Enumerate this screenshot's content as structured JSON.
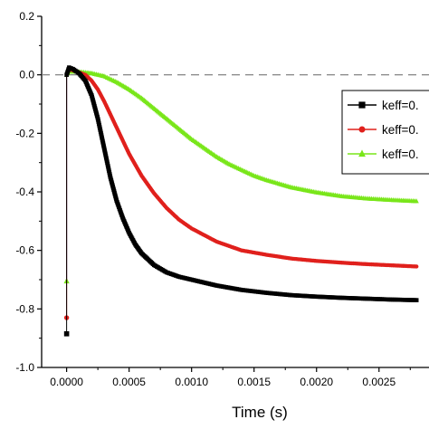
{
  "chart_data": {
    "type": "line",
    "xlabel": "Time (s)",
    "ylabel": "",
    "xlim": [
      -0.0002,
      0.0029
    ],
    "ylim": [
      -1.0,
      0.2
    ],
    "x_ticks": [
      "0.0000",
      "0.0005",
      "0.0010",
      "0.0015",
      "0.0020",
      "0.0025"
    ],
    "x_tick_values": [
      0,
      0.0005,
      0.001,
      0.0015,
      0.002,
      0.0025
    ],
    "y_ticks": [
      "0.2",
      "0.0",
      "-0.2",
      "-0.4",
      "-0.6",
      "-0.8",
      "-1.0"
    ],
    "y_tick_values": [
      0.2,
      0.0,
      -0.2,
      -0.4,
      -0.6,
      -0.8,
      -1.0
    ],
    "reference_line_y": 0.0,
    "grid": false,
    "legend_position": "right",
    "series": [
      {
        "name": "keff=0.",
        "color": "#000000",
        "marker": "square",
        "points": [
          [
            0,
            -0.885
          ],
          [
            0,
            0.0
          ],
          [
            2e-05,
            0.025
          ],
          [
            5e-05,
            0.02
          ],
          [
            0.0001,
            0.005
          ],
          [
            0.00015,
            -0.02
          ],
          [
            0.0002,
            -0.07
          ],
          [
            0.00025,
            -0.15
          ],
          [
            0.0003,
            -0.25
          ],
          [
            0.00035,
            -0.35
          ],
          [
            0.0004,
            -0.43
          ],
          [
            0.00045,
            -0.49
          ],
          [
            0.0005,
            -0.54
          ],
          [
            0.00055,
            -0.58
          ],
          [
            0.0006,
            -0.61
          ],
          [
            0.0007,
            -0.65
          ],
          [
            0.0008,
            -0.675
          ],
          [
            0.0009,
            -0.69
          ],
          [
            0.001,
            -0.7
          ],
          [
            0.0012,
            -0.72
          ],
          [
            0.0014,
            -0.735
          ],
          [
            0.0016,
            -0.745
          ],
          [
            0.0018,
            -0.753
          ],
          [
            0.002,
            -0.758
          ],
          [
            0.0022,
            -0.762
          ],
          [
            0.0024,
            -0.765
          ],
          [
            0.0026,
            -0.768
          ],
          [
            0.0028,
            -0.77
          ]
        ]
      },
      {
        "name": "keff=0.",
        "color": "#e0201c",
        "marker": "circle",
        "points": [
          [
            0,
            -0.83
          ],
          [
            0,
            0.0
          ],
          [
            2e-05,
            0.02
          ],
          [
            5e-05,
            0.015
          ],
          [
            0.0001,
            0.008
          ],
          [
            0.00015,
            0.0
          ],
          [
            0.0002,
            -0.02
          ],
          [
            0.00025,
            -0.05
          ],
          [
            0.0003,
            -0.09
          ],
          [
            0.00035,
            -0.135
          ],
          [
            0.0004,
            -0.18
          ],
          [
            0.00045,
            -0.225
          ],
          [
            0.0005,
            -0.27
          ],
          [
            0.0006,
            -0.345
          ],
          [
            0.0007,
            -0.405
          ],
          [
            0.0008,
            -0.455
          ],
          [
            0.0009,
            -0.495
          ],
          [
            0.001,
            -0.525
          ],
          [
            0.0012,
            -0.57
          ],
          [
            0.0014,
            -0.6
          ],
          [
            0.0016,
            -0.615
          ],
          [
            0.0018,
            -0.628
          ],
          [
            0.002,
            -0.636
          ],
          [
            0.0022,
            -0.642
          ],
          [
            0.0024,
            -0.647
          ],
          [
            0.0026,
            -0.651
          ],
          [
            0.0028,
            -0.655
          ]
        ]
      },
      {
        "name": "keff=0.",
        "color": "#79e61a",
        "marker": "triangle",
        "points": [
          [
            0,
            -0.705
          ],
          [
            0,
            0.0
          ],
          [
            2e-05,
            0.01
          ],
          [
            0.0001,
            0.01
          ],
          [
            0.0002,
            0.005
          ],
          [
            0.0003,
            -0.005
          ],
          [
            0.0004,
            -0.025
          ],
          [
            0.0005,
            -0.05
          ],
          [
            0.0006,
            -0.08
          ],
          [
            0.0007,
            -0.115
          ],
          [
            0.0008,
            -0.15
          ],
          [
            0.0009,
            -0.185
          ],
          [
            0.001,
            -0.22
          ],
          [
            0.0011,
            -0.25
          ],
          [
            0.0012,
            -0.28
          ],
          [
            0.0013,
            -0.305
          ],
          [
            0.0014,
            -0.325
          ],
          [
            0.0015,
            -0.345
          ],
          [
            0.0016,
            -0.36
          ],
          [
            0.0018,
            -0.385
          ],
          [
            0.002,
            -0.402
          ],
          [
            0.0022,
            -0.415
          ],
          [
            0.0024,
            -0.423
          ],
          [
            0.0026,
            -0.428
          ],
          [
            0.0028,
            -0.432
          ]
        ]
      }
    ]
  }
}
